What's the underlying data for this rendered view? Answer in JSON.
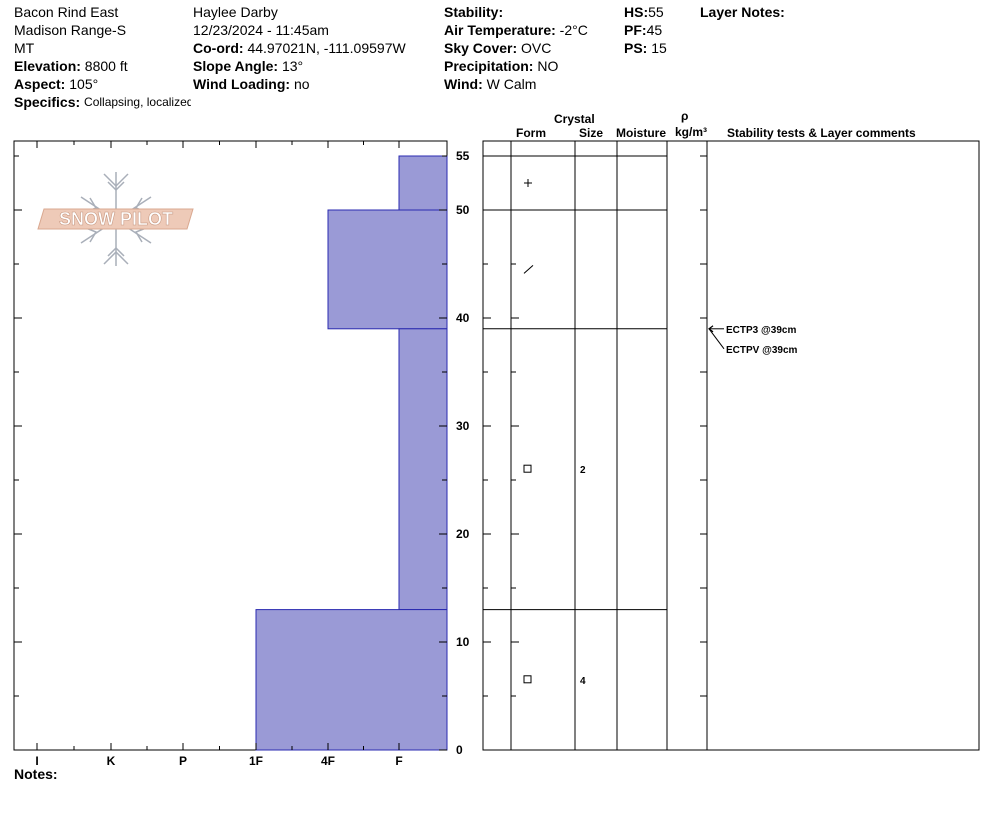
{
  "header": {
    "location": "Bacon Rind East",
    "range": "Madison Range-S",
    "state": "MT",
    "elevation_label": "Elevation:",
    "elevation_value": "8800 ft",
    "aspect_label": "Aspect:",
    "aspect_value": "105°",
    "specifics_label": "Specifics:",
    "specifics_value": "Collapsing, localized",
    "observer": "Haylee Darby",
    "datetime": "12/23/2024 - 11:45am",
    "coord_label": "Co-ord:",
    "coord_value": "44.97021N, -111.09597W",
    "slope_label": "Slope Angle:",
    "slope_value": "13°",
    "wind_loading_label": "Wind Loading:",
    "wind_loading_value": "no",
    "stability_label": "Stability:",
    "air_temp_label": "Air Temperature:",
    "air_temp_value": "-2°C",
    "sky_label": "Sky Cover:",
    "sky_value": "OVC",
    "precip_label": "Precipitation:",
    "precip_value": "NO",
    "wind_label": "Wind:",
    "wind_value": "W Calm",
    "hs_label": "HS:",
    "hs_value": "55",
    "pf_label": "PF:",
    "pf_value": "45",
    "ps_label": "PS:",
    "ps_value": "15",
    "layer_notes_label": "Layer Notes:"
  },
  "notes_label": "Notes:",
  "logo_text": "SNOW PILOT",
  "colors": {
    "hardness_fill": "#9a9ad6",
    "hardness_stroke": "#2a2ab0",
    "logo": "#e8b8a0"
  },
  "columns": {
    "crystal": "Crystal",
    "form": "Form",
    "size": "Size",
    "moisture": "Moisture",
    "rho": "ρ",
    "density_unit": "kg/m³",
    "stability": "Stability tests & Layer comments"
  },
  "chart_data": {
    "type": "snow-profile",
    "y_axis": {
      "min": 0,
      "max": 55,
      "ticks": [
        0,
        10,
        20,
        30,
        40,
        50,
        55
      ]
    },
    "hardness_scale": [
      "I",
      "K",
      "P",
      "1F",
      "4F",
      "F"
    ],
    "layers": [
      {
        "top": 55,
        "bottom": 50,
        "hardness": "F"
      },
      {
        "top": 50,
        "bottom": 39,
        "hardness": "4F"
      },
      {
        "top": 39,
        "bottom": 13,
        "hardness": "F"
      },
      {
        "top": 13,
        "bottom": 0,
        "hardness": "1F"
      }
    ],
    "crystals": [
      {
        "depth": 52.5,
        "form": "+",
        "size": ""
      },
      {
        "depth": 44.5,
        "form": "/",
        "size": ""
      },
      {
        "depth": 26,
        "form": "□",
        "size": "2"
      },
      {
        "depth": 6.5,
        "form": "□",
        "size": "4"
      }
    ],
    "stability_tests": [
      {
        "depth": 39,
        "text": "ECTP3 @39cm"
      },
      {
        "depth": 39,
        "text": "ECTPV @39cm"
      }
    ]
  }
}
